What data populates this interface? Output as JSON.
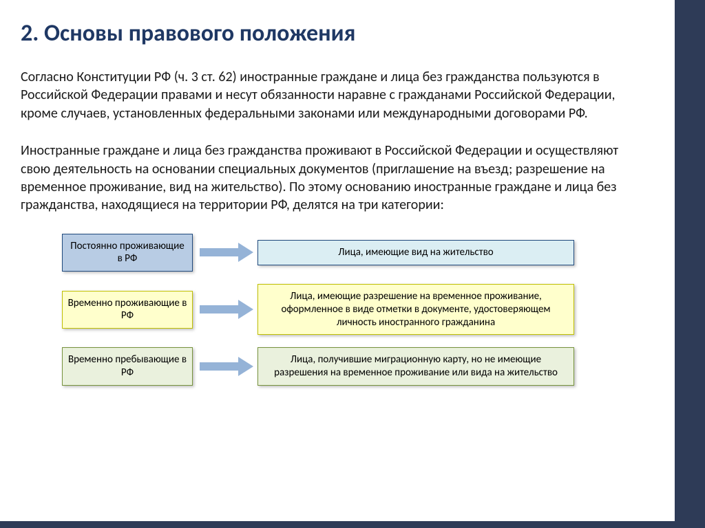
{
  "title": "2. Основы правового положения",
  "paragraph1": "Согласно Конституции РФ (ч. 3 ст. 62) иностранные граждане и лица без гражданства пользуются в Российской Федерации правами и несут обязанности наравне с гражданами Российской Федерации, кроме случаев, установленных федеральными законами или международными договорами РФ.",
  "paragraph2": "Иностранные граждане и лица без гражданства проживают в Российской Федерации и осуществляют свою деятельность на основании специальных документов (приглашение на въезд; разрешение на временное проживание, вид на жительство). По этому основанию иностранные граждане и лица без гражданства, находящиеся на территории РФ, делятся на три категории:",
  "rows": [
    {
      "left": "Постоянно проживающие в РФ",
      "right": "Лица, имеющие вид на жительство",
      "left_bg": "#b8cce4",
      "left_border": "#1f497d",
      "right_bg": "#dbeef3",
      "right_border": "#1f497d",
      "arrow_fill": "#95b3d7"
    },
    {
      "left": "Временно проживающие в РФ",
      "right": "Лица, имеющие разрешение на временное проживание, оформленное в виде отметки в документе, удостоверяющем личность иностранного гражданина",
      "left_bg": "#ffffcc",
      "left_border": "#bfbf00",
      "right_bg": "#ffffcc",
      "right_border": "#bfbf00",
      "arrow_fill": "#95b3d7"
    },
    {
      "left": "Временно пребывающие в РФ",
      "right": "Лица, получившие миграционную карту, но не имеющие разрешения на временное проживание или вида на жительство",
      "left_bg": "#eaf1dd",
      "left_border": "#76923c",
      "right_bg": "#eaf1dd",
      "right_border": "#76923c",
      "arrow_fill": "#95b3d7"
    }
  ],
  "colors": {
    "title": "#1f3864",
    "bar": "#2e3b57",
    "text": "#1a1a1a",
    "boxtext": "#000000"
  },
  "fonts": {
    "title_size": 34,
    "para_size": 20,
    "box_size": 15
  }
}
